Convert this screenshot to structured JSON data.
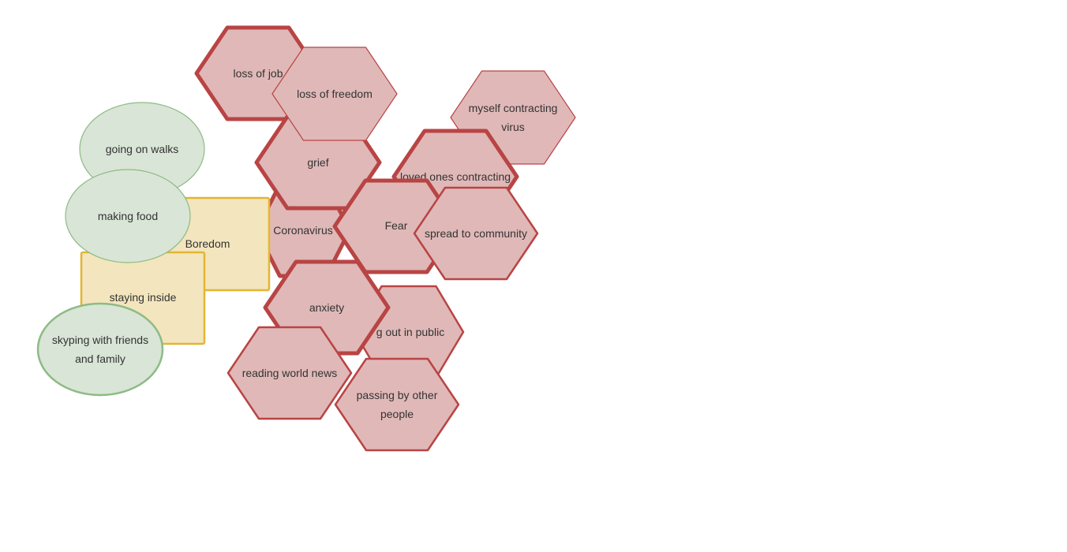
{
  "colors": {
    "hexagon_fill": "#e0b8b8",
    "hexagon_stroke": "#b94444",
    "ellipse_fill": "#d9e5d6",
    "ellipse_stroke": "#8dbb85",
    "rect_fill": "#f3e5bd",
    "rect_stroke": "#e3b533",
    "text": "#333333"
  },
  "nodes": [
    {
      "id": "loss-of-job",
      "shape": "hexagon",
      "emphasis": "bold",
      "lines": [
        "loss of job"
      ]
    },
    {
      "id": "coronavirus",
      "shape": "hexagon",
      "emphasis": "bold",
      "lines": [
        "Coronavirus"
      ]
    },
    {
      "id": "grief",
      "shape": "hexagon",
      "emphasis": "bold",
      "lines": [
        "grief"
      ]
    },
    {
      "id": "loss-of-freedom",
      "shape": "hexagon",
      "emphasis": "thin",
      "lines": [
        "loss of freedom"
      ]
    },
    {
      "id": "myself-contracting-virus",
      "shape": "hexagon",
      "emphasis": "thin",
      "lines": [
        "myself contracting",
        "virus"
      ]
    },
    {
      "id": "loved-ones-contracting",
      "shape": "hexagon",
      "emphasis": "bold",
      "lines": [
        "loved ones contracting"
      ]
    },
    {
      "id": "fear",
      "shape": "hexagon",
      "emphasis": "bold",
      "lines": [
        "Fear"
      ]
    },
    {
      "id": "spread-to-community",
      "shape": "hexagon",
      "emphasis": "medium",
      "lines": [
        "spread to community"
      ]
    },
    {
      "id": "going-out-in-public",
      "shape": "hexagon",
      "emphasis": "medium",
      "lines": [
        "g out in public"
      ]
    },
    {
      "id": "anxiety",
      "shape": "hexagon",
      "emphasis": "bold",
      "lines": [
        "anxiety"
      ]
    },
    {
      "id": "reading-world-news",
      "shape": "hexagon",
      "emphasis": "medium",
      "lines": [
        "reading world news"
      ]
    },
    {
      "id": "passing-by-other-people",
      "shape": "hexagon",
      "emphasis": "medium",
      "lines": [
        "passing by other",
        "people"
      ]
    },
    {
      "id": "boredom",
      "shape": "rect",
      "emphasis": "medium",
      "lines": [
        "Boredom"
      ]
    },
    {
      "id": "staying-inside",
      "shape": "rect",
      "emphasis": "medium",
      "lines": [
        "staying inside"
      ]
    },
    {
      "id": "going-on-walks",
      "shape": "ellipse",
      "emphasis": "thin",
      "lines": [
        "going on walks"
      ]
    },
    {
      "id": "making-food",
      "shape": "ellipse",
      "emphasis": "thin",
      "lines": [
        "making food"
      ]
    },
    {
      "id": "skyping-with-friends",
      "shape": "ellipse",
      "emphasis": "medium",
      "lines": [
        "skyping with friends",
        "and family"
      ]
    }
  ]
}
